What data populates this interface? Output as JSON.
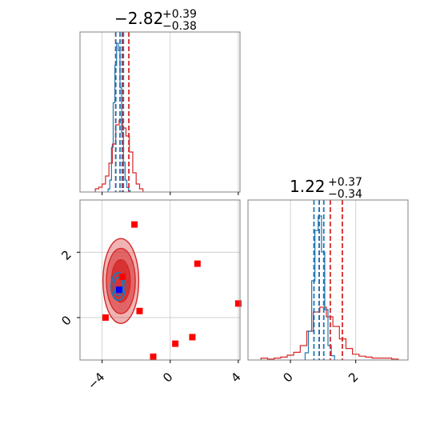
{
  "chart_data": {
    "type": "corner",
    "colors": {
      "red": "#d62728",
      "blue": "#1f77b4",
      "marker_red": "#ff0000",
      "marker_blue": "#0000ff",
      "axis": "#808080",
      "grid": "#c8c8c8"
    },
    "params": [
      {
        "title": "−2.82",
        "title_plus": "+0.39",
        "title_minus": "−0.38",
        "range": [
          -5.3,
          4.1
        ],
        "red_quantiles": [
          -3.2,
          -2.82,
          -2.43
        ],
        "blue_quantiles": [
          -3.2,
          -2.95,
          -2.75
        ],
        "red_hist_x": [
          -4.3,
          -4.1,
          -3.9,
          -3.7,
          -3.5,
          -3.3,
          -3.1,
          -2.9,
          -2.7,
          -2.5,
          -2.3,
          -2.1,
          -1.9,
          -1.7
        ],
        "red_hist_y": [
          0.02,
          0.03,
          0.05,
          0.1,
          0.18,
          0.3,
          0.42,
          0.45,
          0.4,
          0.35,
          0.25,
          0.12,
          0.05,
          0.02
        ],
        "blue_hist_x": [
          -3.6,
          -3.5,
          -3.4,
          -3.3,
          -3.2,
          -3.1,
          -3.0,
          -2.9,
          -2.8,
          -2.7,
          -2.6,
          -2.5,
          -2.4
        ],
        "blue_hist_y": [
          0.02,
          0.08,
          0.3,
          0.6,
          0.85,
          1.0,
          0.95,
          0.7,
          0.4,
          0.2,
          0.08,
          0.03,
          0.01
        ]
      },
      {
        "title": "1.22",
        "title_plus": "+0.37",
        "title_minus": "−0.34",
        "range": [
          -1.3,
          3.6
        ],
        "red_quantiles": [
          0.88,
          1.22,
          1.59
        ],
        "blue_quantiles": [
          0.72,
          0.88,
          1.02
        ],
        "red_hist_x": [
          -0.8,
          -0.6,
          -0.4,
          -0.2,
          0.0,
          0.2,
          0.4,
          0.6,
          0.8,
          1.0,
          1.2,
          1.4,
          1.6,
          1.8,
          2.0,
          2.2,
          2.4,
          2.6,
          2.8,
          3.0,
          3.2
        ],
        "red_hist_y": [
          0.02,
          0.01,
          0.02,
          0.03,
          0.05,
          0.08,
          0.15,
          0.3,
          0.5,
          0.55,
          0.45,
          0.35,
          0.22,
          0.12,
          0.06,
          0.04,
          0.03,
          0.02,
          0.02,
          0.02,
          0.01
        ],
        "blue_hist_x": [
          0.5,
          0.6,
          0.7,
          0.8,
          0.9,
          1.0,
          1.1,
          1.2,
          1.3
        ],
        "blue_hist_y": [
          0.05,
          0.2,
          0.55,
          0.9,
          1.0,
          0.75,
          0.35,
          0.1,
          0.03
        ]
      }
    ],
    "x_ticks_param0": [
      {
        "value": -4,
        "label": "−4"
      },
      {
        "value": 0,
        "label": "0"
      },
      {
        "value": 4,
        "label": "4"
      }
    ],
    "x_ticks_param1": [
      {
        "value": 0,
        "label": "0"
      },
      {
        "value": 2,
        "label": "2"
      }
    ],
    "y_ticks_param1": [
      {
        "value": 0,
        "label": "0"
      },
      {
        "value": 2,
        "label": "2"
      }
    ],
    "joint_contours_red": [
      {
        "cx": -2.9,
        "cy": 1.12,
        "rx": 1.05,
        "ry": 1.3,
        "alpha": 0.35
      },
      {
        "cx": -2.9,
        "cy": 1.12,
        "rx": 0.85,
        "ry": 1.0,
        "alpha": 0.55
      },
      {
        "cx": -2.9,
        "cy": 1.12,
        "rx": 0.55,
        "ry": 0.65,
        "alpha": 0.8
      }
    ],
    "joint_contours_blue": [
      {
        "cx": -3.05,
        "cy": 0.95,
        "rx": 0.42,
        "ry": 0.42
      },
      {
        "cx": -3.05,
        "cy": 0.95,
        "rx": 0.28,
        "ry": 0.28
      }
    ],
    "red_markers": [
      {
        "x": -2.1,
        "y": 2.85
      },
      {
        "x": 1.6,
        "y": 1.65
      },
      {
        "x": 4.0,
        "y": 0.43
      },
      {
        "x": -1.8,
        "y": 0.2
      },
      {
        "x": -3.8,
        "y": 0.0
      },
      {
        "x": 1.3,
        "y": -0.6
      },
      {
        "x": 0.3,
        "y": -0.8
      },
      {
        "x": -1.0,
        "y": -1.2
      },
      {
        "x": -2.8,
        "y": 1.25
      }
    ],
    "blue_markers": [
      {
        "x": -3.0,
        "y": 0.85
      }
    ]
  }
}
